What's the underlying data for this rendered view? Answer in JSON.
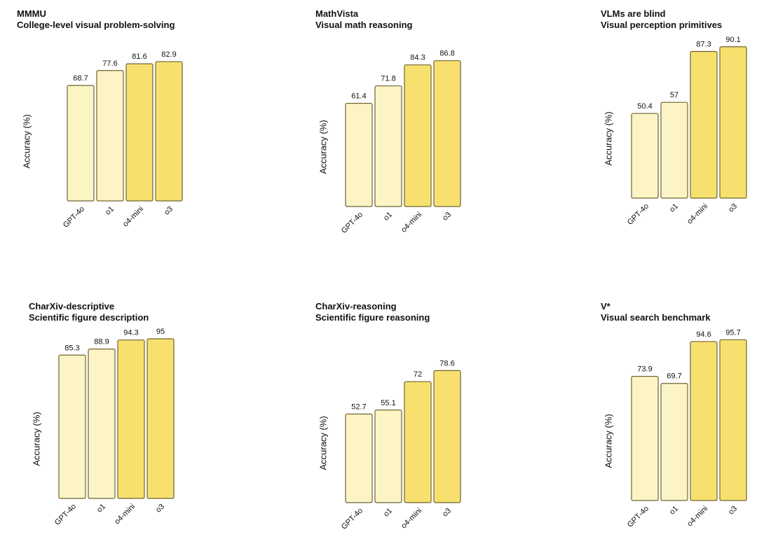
{
  "chart_data": [
    {
      "type": "bar",
      "title": "MMMU",
      "subtitle": "College-level visual problem-solving",
      "ylabel": "Accuracy (%)",
      "categories": [
        "GPT-4o",
        "o1",
        "o4-mini",
        "o3"
      ],
      "values": [
        68.7,
        77.6,
        81.6,
        82.9
      ],
      "value_labels": [
        "68.7",
        "77.6",
        "81.6",
        "82.9"
      ],
      "ylim": [
        0,
        100
      ]
    },
    {
      "type": "bar",
      "title": "MathVista",
      "subtitle": "Visual math reasoning",
      "ylabel": "Accuracy (%)",
      "categories": [
        "GPT-4o",
        "o1",
        "o4-mini",
        "o3"
      ],
      "values": [
        61.4,
        71.8,
        84.3,
        86.8
      ],
      "value_labels": [
        "61.4",
        "71.8",
        "84.3",
        "86.8"
      ],
      "ylim": [
        0,
        100
      ]
    },
    {
      "type": "bar",
      "title": "VLMs are blind",
      "subtitle": "Visual perception primitives",
      "ylabel": "Accuracy (%)",
      "categories": [
        "GPT-4o",
        "o1",
        "o4-mini",
        "o3"
      ],
      "values": [
        50.4,
        57,
        87.3,
        90.1
      ],
      "value_labels": [
        "50.4",
        "57",
        "87.3",
        "90.1"
      ],
      "ylim": [
        0,
        100
      ]
    },
    {
      "type": "bar",
      "title": "CharXiv-descriptive",
      "subtitle": "Scientific figure description",
      "ylabel": "Accuracy (%)",
      "categories": [
        "GPT-4o",
        "o1",
        "o4-mini",
        "o3"
      ],
      "values": [
        85.3,
        88.9,
        94.3,
        95
      ],
      "value_labels": [
        "85.3",
        "88.9",
        "94.3",
        "95"
      ],
      "ylim": [
        0,
        100
      ]
    },
    {
      "type": "bar",
      "title": "CharXiv-reasoning",
      "subtitle": "Scientific figure reasoning",
      "ylabel": "Accuracy (%)",
      "categories": [
        "GPT-4o",
        "o1",
        "o4-mini",
        "o3"
      ],
      "values": [
        52.7,
        55.1,
        72,
        78.6
      ],
      "value_labels": [
        "52.7",
        "55.1",
        "72",
        "78.6"
      ],
      "ylim": [
        0,
        100
      ]
    },
    {
      "type": "bar",
      "title": "V*",
      "subtitle": "Visual search benchmark",
      "ylabel": "Accuracy (%)",
      "categories": [
        "GPT-4o",
        "o1",
        "o4-mini",
        "o3"
      ],
      "values": [
        73.9,
        69.7,
        94.6,
        95.7
      ],
      "value_labels": [
        "73.9",
        "69.7",
        "94.6",
        "95.7"
      ],
      "ylim": [
        0,
        100
      ]
    }
  ],
  "colors": {
    "light_fill": "#fdf4c6",
    "dark_fill": "#f8e06e",
    "bar_stroke": "#6f6330"
  }
}
